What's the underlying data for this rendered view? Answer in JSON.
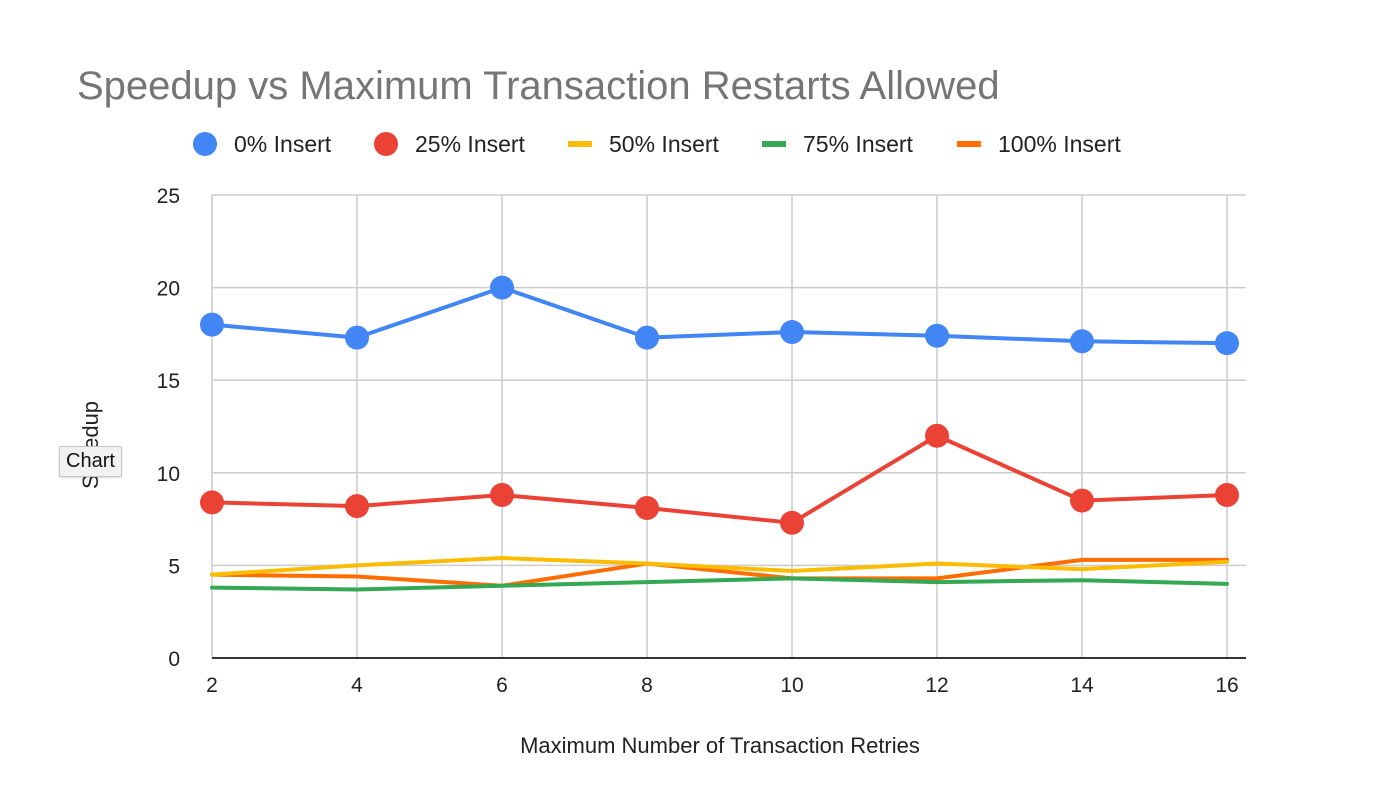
{
  "tooltip": {
    "text": "Chart"
  },
  "colors": {
    "title": "#757575",
    "grid": "#cccccc"
  },
  "chart_data": {
    "type": "line",
    "title": "Speedup vs Maximum Transaction Restarts Allowed",
    "xlabel": "Maximum Number of Transaction Retries",
    "ylabel": "Speedup",
    "x": [
      2,
      4,
      6,
      8,
      10,
      12,
      14,
      16
    ],
    "ylim": [
      0,
      25
    ],
    "yticks": [
      0,
      5,
      10,
      15,
      20,
      25
    ],
    "grid": true,
    "legend_position": "top",
    "series": [
      {
        "name": "0% Insert",
        "color": "#4285f4",
        "markers": true,
        "values": [
          18.0,
          17.3,
          20.0,
          17.3,
          17.6,
          17.4,
          17.1,
          17.0
        ]
      },
      {
        "name": "25% Insert",
        "color": "#ea4335",
        "markers": true,
        "values": [
          8.4,
          8.2,
          8.8,
          8.1,
          7.3,
          12.0,
          8.5,
          8.8
        ]
      },
      {
        "name": "50% Insert",
        "color": "#fbbc04",
        "markers": false,
        "values": [
          4.5,
          5.0,
          5.4,
          5.1,
          4.7,
          5.1,
          4.8,
          5.2
        ]
      },
      {
        "name": "75% Insert",
        "color": "#34a853",
        "markers": false,
        "values": [
          3.8,
          3.7,
          3.9,
          4.1,
          4.3,
          4.1,
          4.2,
          4.0
        ]
      },
      {
        "name": "100% Insert",
        "color": "#ff6d01",
        "markers": false,
        "values": [
          4.5,
          4.4,
          3.9,
          5.1,
          4.3,
          4.3,
          5.3,
          5.3
        ]
      }
    ]
  }
}
